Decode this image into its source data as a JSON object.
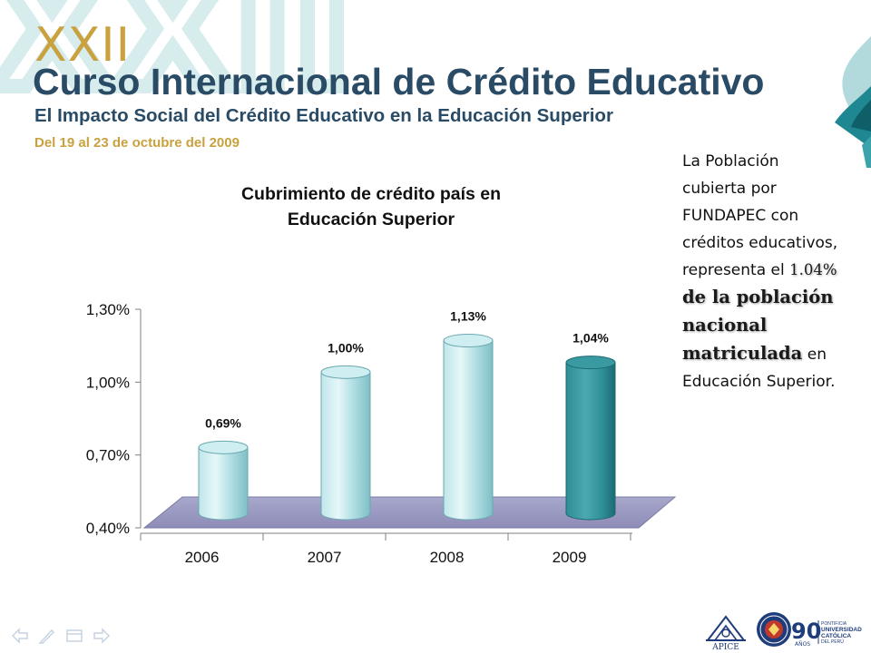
{
  "header": {
    "background_numeral": "XXII",
    "numeral": "XXII",
    "title": "Curso Internacional de Crédito Educativo",
    "subtitle": "El Impacto Social del Crédito Educativo en la Educación Superior",
    "dates": "Del 19 al 23 de octubre del 2009"
  },
  "chart_data": {
    "type": "bar",
    "title_lines": [
      "Cubrimiento de crédito país en",
      "Educación Superior"
    ],
    "categories": [
      "2006",
      "2007",
      "2008",
      "2009"
    ],
    "values": [
      0.69,
      1.0,
      1.13,
      1.04
    ],
    "data_labels": [
      "0,69%",
      "1,00%",
      "1,13%",
      "1,04%"
    ],
    "y_tick_labels": [
      "0,40%",
      "0,70%",
      "1,00%",
      "1,30%"
    ],
    "y_ticks": [
      0.4,
      0.7,
      1.0,
      1.3
    ],
    "ylim": [
      0.4,
      1.3
    ],
    "xlabel": "",
    "ylabel": "",
    "grid": false,
    "bar_style": "3d-cylinder",
    "colors": {
      "default": "#a9dbe0",
      "highlight": "#2f8d95",
      "floor": "#9c9cc4"
    },
    "highlight_index": 3
  },
  "side_text": {
    "intro": "La Población cubierta por FUNDAPEC con créditos educativos, representa el",
    "highlight_number": "1.04%",
    "highlight_text": "de la población nacional matriculada",
    "outro": "en Educación Superior."
  },
  "footer": {
    "nav_icons": [
      "arrow-left-icon",
      "pen-icon",
      "slides-icon",
      "arrow-right-icon"
    ],
    "logos": {
      "apice": "APICE",
      "ninety": "90",
      "ninety_sub": "AÑOS",
      "pucp_lines": [
        "PONTIFICIA",
        "UNIVERSIDAD",
        "CATÓLICA",
        "DEL PERÚ"
      ]
    }
  }
}
